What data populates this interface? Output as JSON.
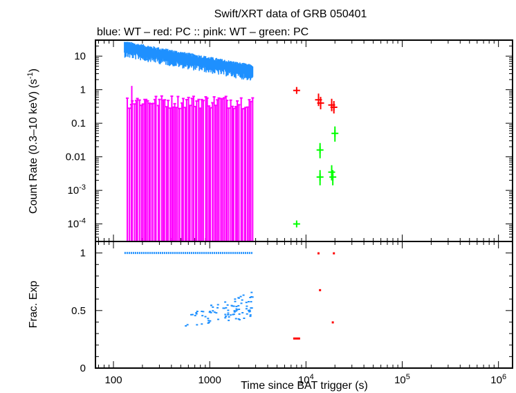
{
  "chart_data": {
    "type": "scatter",
    "title": "Swift/XRT data of GRB 050401",
    "subtitle": "blue: WT  – red: PC  :: pink: WT  – green: PC",
    "xlabel": "Time since BAT trigger (s)",
    "xscale": "log",
    "xlim": [
      65,
      1400000
    ],
    "x_tick_labels": [
      "100",
      "1000",
      "10^4",
      "10^5",
      "10^6"
    ],
    "x_tick_values": [
      100,
      1000,
      10000,
      100000,
      1000000
    ],
    "panels": [
      {
        "ylabel": "Count Rate (0.3–10 keV) (s^-1)",
        "yscale": "log",
        "ylim": [
          3e-05,
          30
        ],
        "y_tick_labels": [
          "10^-4",
          "10^-3",
          "0.01",
          "0.1",
          "1",
          "10"
        ],
        "y_tick_values": [
          0.0001,
          0.001,
          0.01,
          0.1,
          1,
          10
        ],
        "series": [
          {
            "name": "WT",
            "color": "#1e90ff",
            "style": "noisy-band",
            "x_range": [
              130,
              2800
            ],
            "y_start": 18,
            "y_end": 3.5
          },
          {
            "name": "WT",
            "color": "#ff00ff",
            "style": "upper-limit-spikes",
            "x_range": [
              140,
              2800
            ],
            "y_level": 0.45,
            "y_floor": 3e-05
          },
          {
            "name": "PC",
            "color": "#ff0000",
            "style": "points",
            "points": [
              [
                8000,
                0.95
              ],
              [
                13500,
                0.5
              ],
              [
                14200,
                0.4
              ],
              [
                18500,
                0.35
              ],
              [
                19500,
                0.3
              ]
            ]
          },
          {
            "name": "PC",
            "color": "#00ff00",
            "style": "points",
            "points": [
              [
                8000,
                0.0001
              ],
              [
                14000,
                0.016
              ],
              [
                14000,
                0.0025
              ],
              [
                18500,
                0.0035
              ],
              [
                20000,
                0.05
              ],
              [
                19000,
                0.0025
              ]
            ]
          }
        ]
      },
      {
        "ylabel": "Frac. Exp",
        "yscale": "linear",
        "ylim": [
          0,
          1.1
        ],
        "y_tick_labels": [
          "0",
          "0.5",
          "1"
        ],
        "y_tick_values": [
          0,
          0.5,
          1
        ],
        "series": [
          {
            "name": "WT",
            "color": "#1e90ff",
            "style": "dashed-line",
            "x_range": [
              130,
              2800
            ],
            "y": 1.0
          },
          {
            "name": "WT",
            "color": "#1e90ff",
            "style": "scatter",
            "x_range": [
              450,
              2800
            ],
            "y_range": [
              0.3,
              0.67
            ]
          },
          {
            "name": "PC",
            "color": "#ff0000",
            "style": "points",
            "points": [
              [
                8000,
                0.26
              ],
              [
                13500,
                1.0
              ],
              [
                14000,
                0.68
              ],
              [
                19000,
                0.4
              ],
              [
                19500,
                1.0
              ]
            ]
          }
        ]
      }
    ]
  }
}
